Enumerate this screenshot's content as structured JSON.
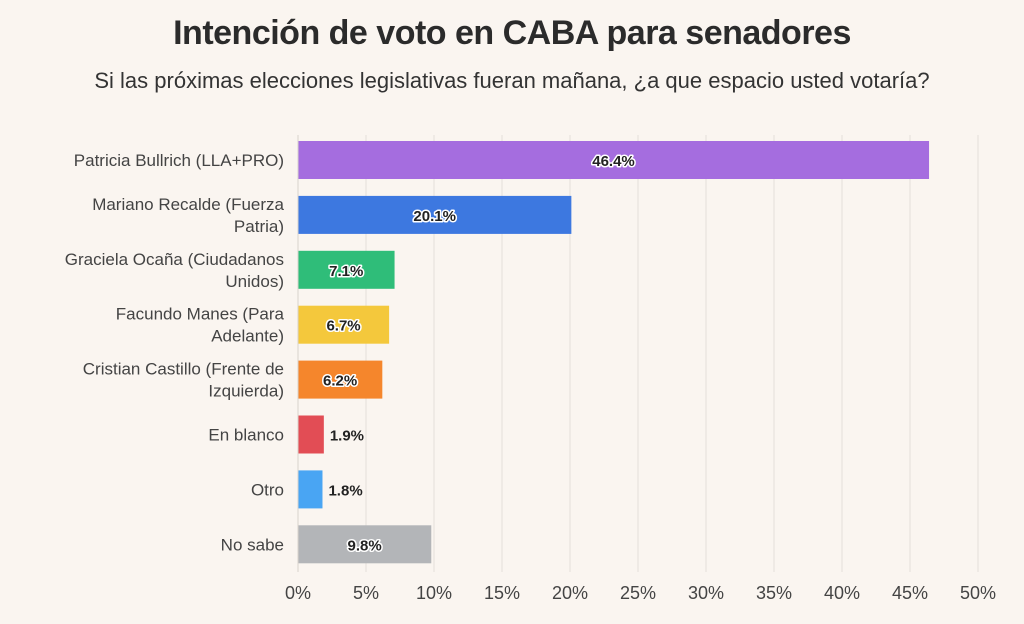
{
  "chart_data": {
    "type": "bar",
    "orientation": "horizontal",
    "title": "Intención de voto en CABA para senadores",
    "subtitle": "Si las próximas elecciones legislativas fueran mañana, ¿a que espacio usted votaría?",
    "xlabel": "",
    "ylabel": "",
    "xlim": [
      0,
      50
    ],
    "grid": true,
    "x_ticks": [
      "0%",
      "5%",
      "10%",
      "15%",
      "20%",
      "25%",
      "30%",
      "35%",
      "40%",
      "45%",
      "50%"
    ],
    "categories": [
      [
        "Patricia Bullrich (LLA+PRO)"
      ],
      [
        "Mariano Recalde (Fuerza",
        "Patria)"
      ],
      [
        "Graciela Ocaña (Ciudadanos",
        "Unidos)"
      ],
      [
        "Facundo Manes (Para",
        "Adelante)"
      ],
      [
        "Cristian Castillo (Frente de",
        "Izquierda)"
      ],
      [
        "En blanco"
      ],
      [
        "Otro"
      ],
      [
        "No sabe"
      ]
    ],
    "values": [
      46.4,
      20.1,
      7.1,
      6.7,
      6.2,
      1.9,
      1.8,
      9.8
    ],
    "value_labels": [
      "46.4%",
      "20.1%",
      "7.1%",
      "6.7%",
      "6.2%",
      "1.9%",
      "1.8%",
      "9.8%"
    ],
    "colors": [
      "#a56ddf",
      "#3d78e0",
      "#2fbd79",
      "#f4c83c",
      "#f5862c",
      "#e24d55",
      "#49a5f3",
      "#b3b5b8"
    ]
  }
}
